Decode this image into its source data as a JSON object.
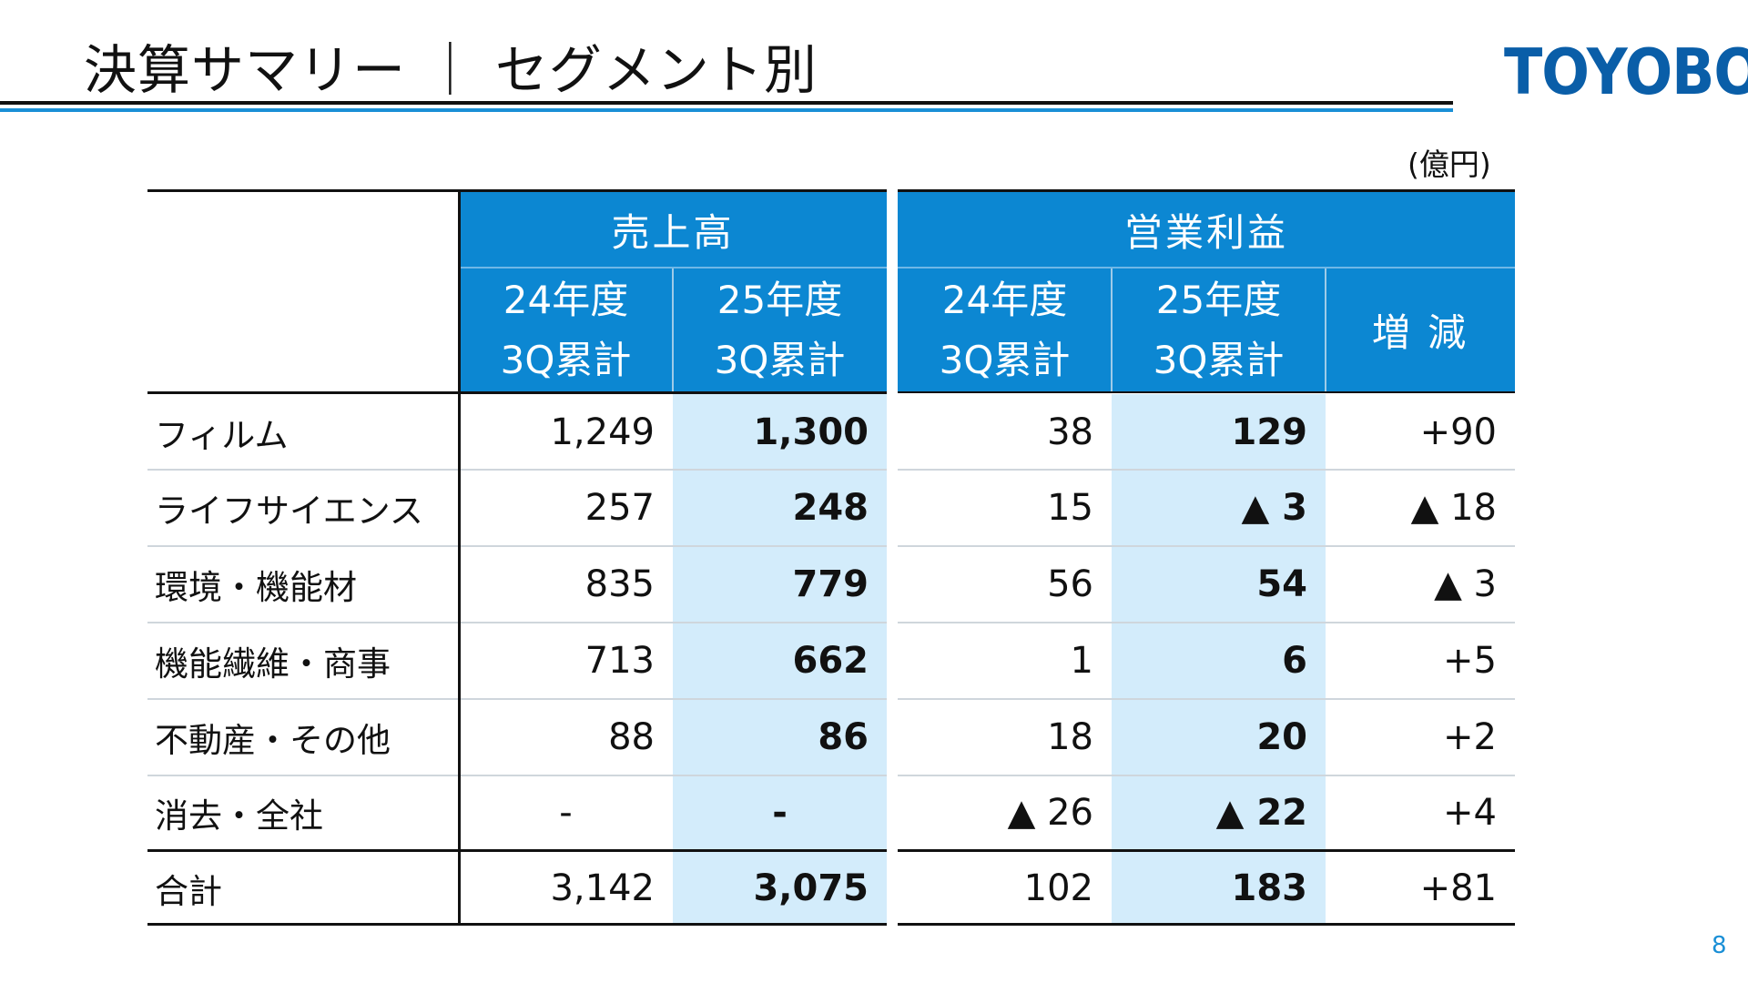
{
  "header": {
    "title": "決算サマリー ｜ セグメント別",
    "logo_text": "TOYOBO"
  },
  "unit": "(億円)",
  "page_number": "8",
  "table": {
    "groups": {
      "sales": "売上高",
      "operating_profit": "営業利益"
    },
    "col_headers": {
      "y24_line1": "24年度",
      "y24_line2": "3Q累計",
      "y25_line1": "25年度",
      "y25_line2": "3Q累計",
      "change": "増 減"
    },
    "rows": [
      {
        "segment": "フィルム",
        "sales_24": "1,249",
        "sales_25": "1,300",
        "op_24": "38",
        "op_25": "129",
        "change": "+90"
      },
      {
        "segment": "ライフサイエンス",
        "sales_24": "257",
        "sales_25": "248",
        "op_24": "15",
        "op_25": "▲ 3",
        "change": "▲ 18"
      },
      {
        "segment": "環境・機能材",
        "sales_24": "835",
        "sales_25": "779",
        "op_24": "56",
        "op_25": "54",
        "change": "▲ 3"
      },
      {
        "segment": "機能繊維・商事",
        "sales_24": "713",
        "sales_25": "662",
        "op_24": "1",
        "op_25": "6",
        "change": "+5"
      },
      {
        "segment": "不動産・その他",
        "sales_24": "88",
        "sales_25": "86",
        "op_24": "18",
        "op_25": "20",
        "change": "+2"
      },
      {
        "segment": "消去・全社",
        "sales_24": "-",
        "sales_25": "-",
        "op_24": "▲ 26",
        "op_25": "▲ 22",
        "change": "+4"
      },
      {
        "segment": "合計",
        "sales_24": "3,142",
        "sales_25": "3,075",
        "op_24": "102",
        "op_25": "183",
        "change": "+81"
      }
    ]
  },
  "colors": {
    "header_blue": "#0c87d2",
    "highlight_light_blue": "#d3ecfb",
    "logo_blue": "#0a5ea8",
    "accent_rule_blue": "#1a8fd6"
  }
}
